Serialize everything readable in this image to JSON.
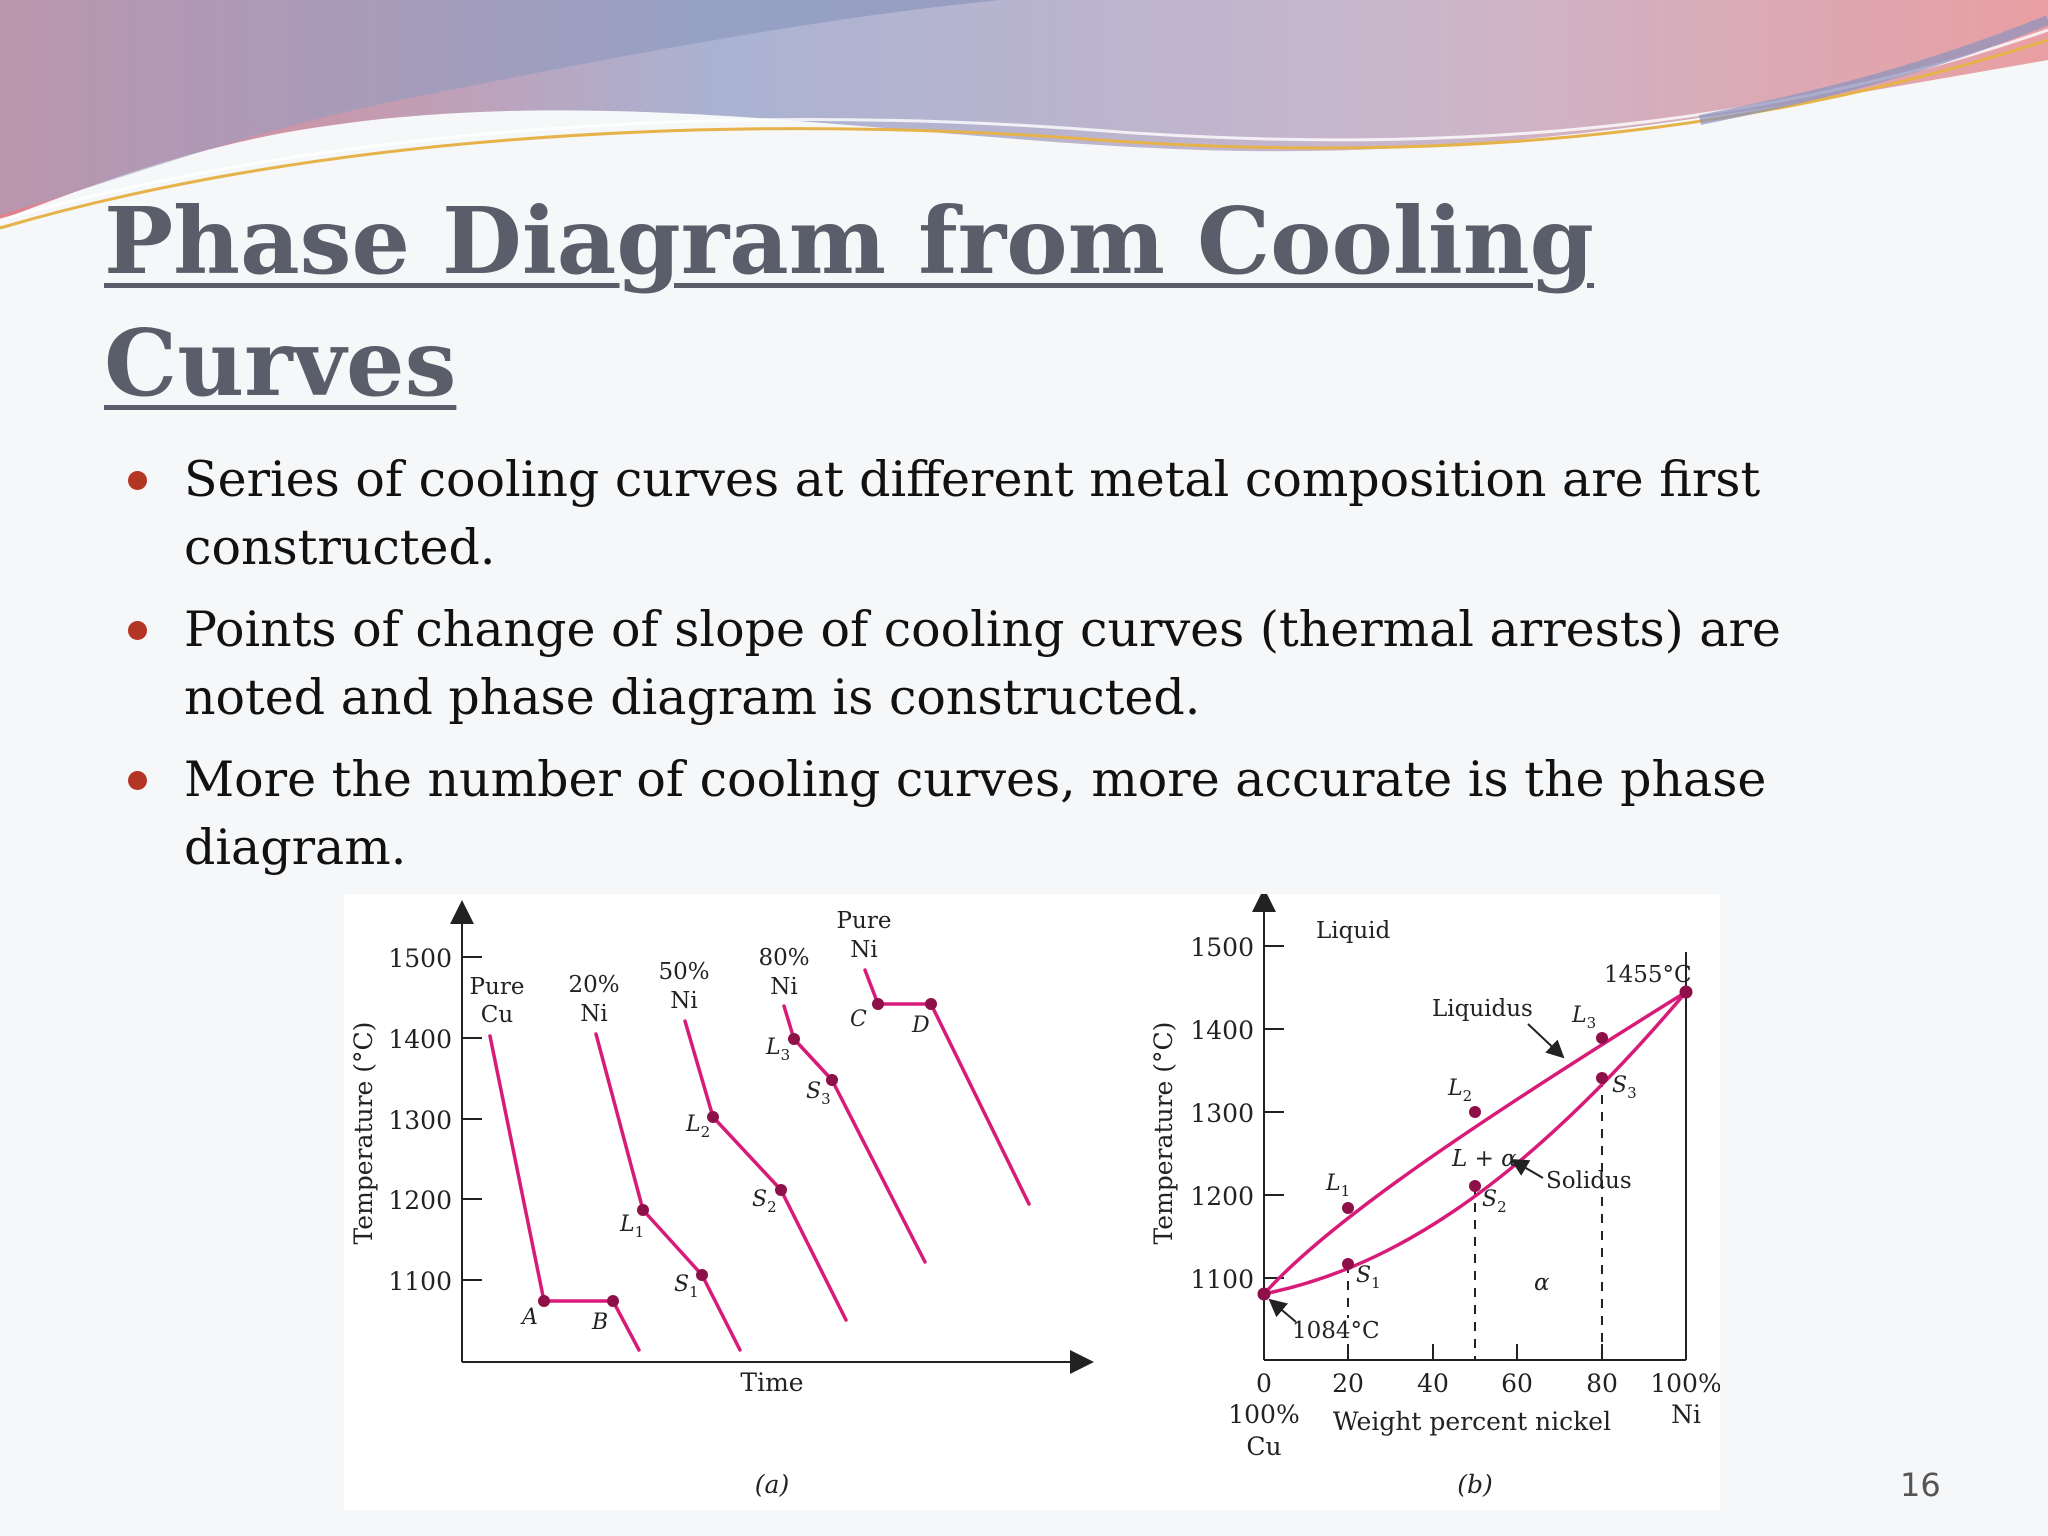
{
  "slide": {
    "title": "Phase Diagram from Cooling Curves",
    "bullets": [
      "Series of cooling curves at different metal composition are first constructed.",
      " Points of change of slope of cooling curves (thermal arrests) are noted and phase diagram is constructed.",
      " More the number of cooling curves, more accurate is the phase diagram."
    ],
    "page_number": "16"
  },
  "colors": {
    "curve": "#d81b78",
    "point": "#8e1048",
    "title": "#5a5e6b",
    "bullet": "#b33524"
  },
  "figure_a": {
    "ylabel": "Temperature (°C)",
    "xlabel": "Time",
    "caption": "(a)",
    "yticks": [
      "1500",
      "1400",
      "1300",
      "1200",
      "1100"
    ],
    "curve_labels": [
      {
        "line1": "Pure",
        "line2": "Cu"
      },
      {
        "line1": "20%",
        "line2": "Ni"
      },
      {
        "line1": "50%",
        "line2": "Ni"
      },
      {
        "line1": "80%",
        "line2": "Ni"
      },
      {
        "line1": "Pure",
        "line2": "Ni"
      }
    ],
    "point_labels": {
      "A": "A",
      "B": "B",
      "C": "C",
      "D": "D",
      "L1": "L",
      "L1_sub": "1",
      "S1": "S",
      "S1_sub": "1",
      "L2": "L",
      "L2_sub": "2",
      "S2": "S",
      "S2_sub": "2",
      "L3": "L",
      "L3_sub": "3",
      "S3": "S",
      "S3_sub": "3"
    }
  },
  "figure_b": {
    "ylabel": "Temperature (°C)",
    "xlabel": "Weight percent nickel",
    "caption": "(b)",
    "yticks": [
      "1500",
      "1400",
      "1300",
      "1200",
      "1100"
    ],
    "xticks": [
      "0",
      "20",
      "40",
      "60",
      "80",
      "100%"
    ],
    "x_left_sub": {
      "line1": "100%",
      "line2": "Cu"
    },
    "x_right_sub": "Ni",
    "region_liquid": "Liquid",
    "region_two_phase": "L + α",
    "region_alpha": "α",
    "liquidus_label": "Liquidus",
    "solidus_label": "Solidus",
    "temp_ni": "1455°C",
    "temp_cu": "1084°C",
    "point_labels": {
      "L1": "L",
      "L1_sub": "1",
      "S1": "S",
      "S1_sub": "1",
      "L2": "L",
      "L2_sub": "2",
      "S2": "S",
      "S2_sub": "2",
      "L3": "L",
      "L3_sub": "3",
      "S3": "S",
      "S3_sub": "3"
    }
  }
}
